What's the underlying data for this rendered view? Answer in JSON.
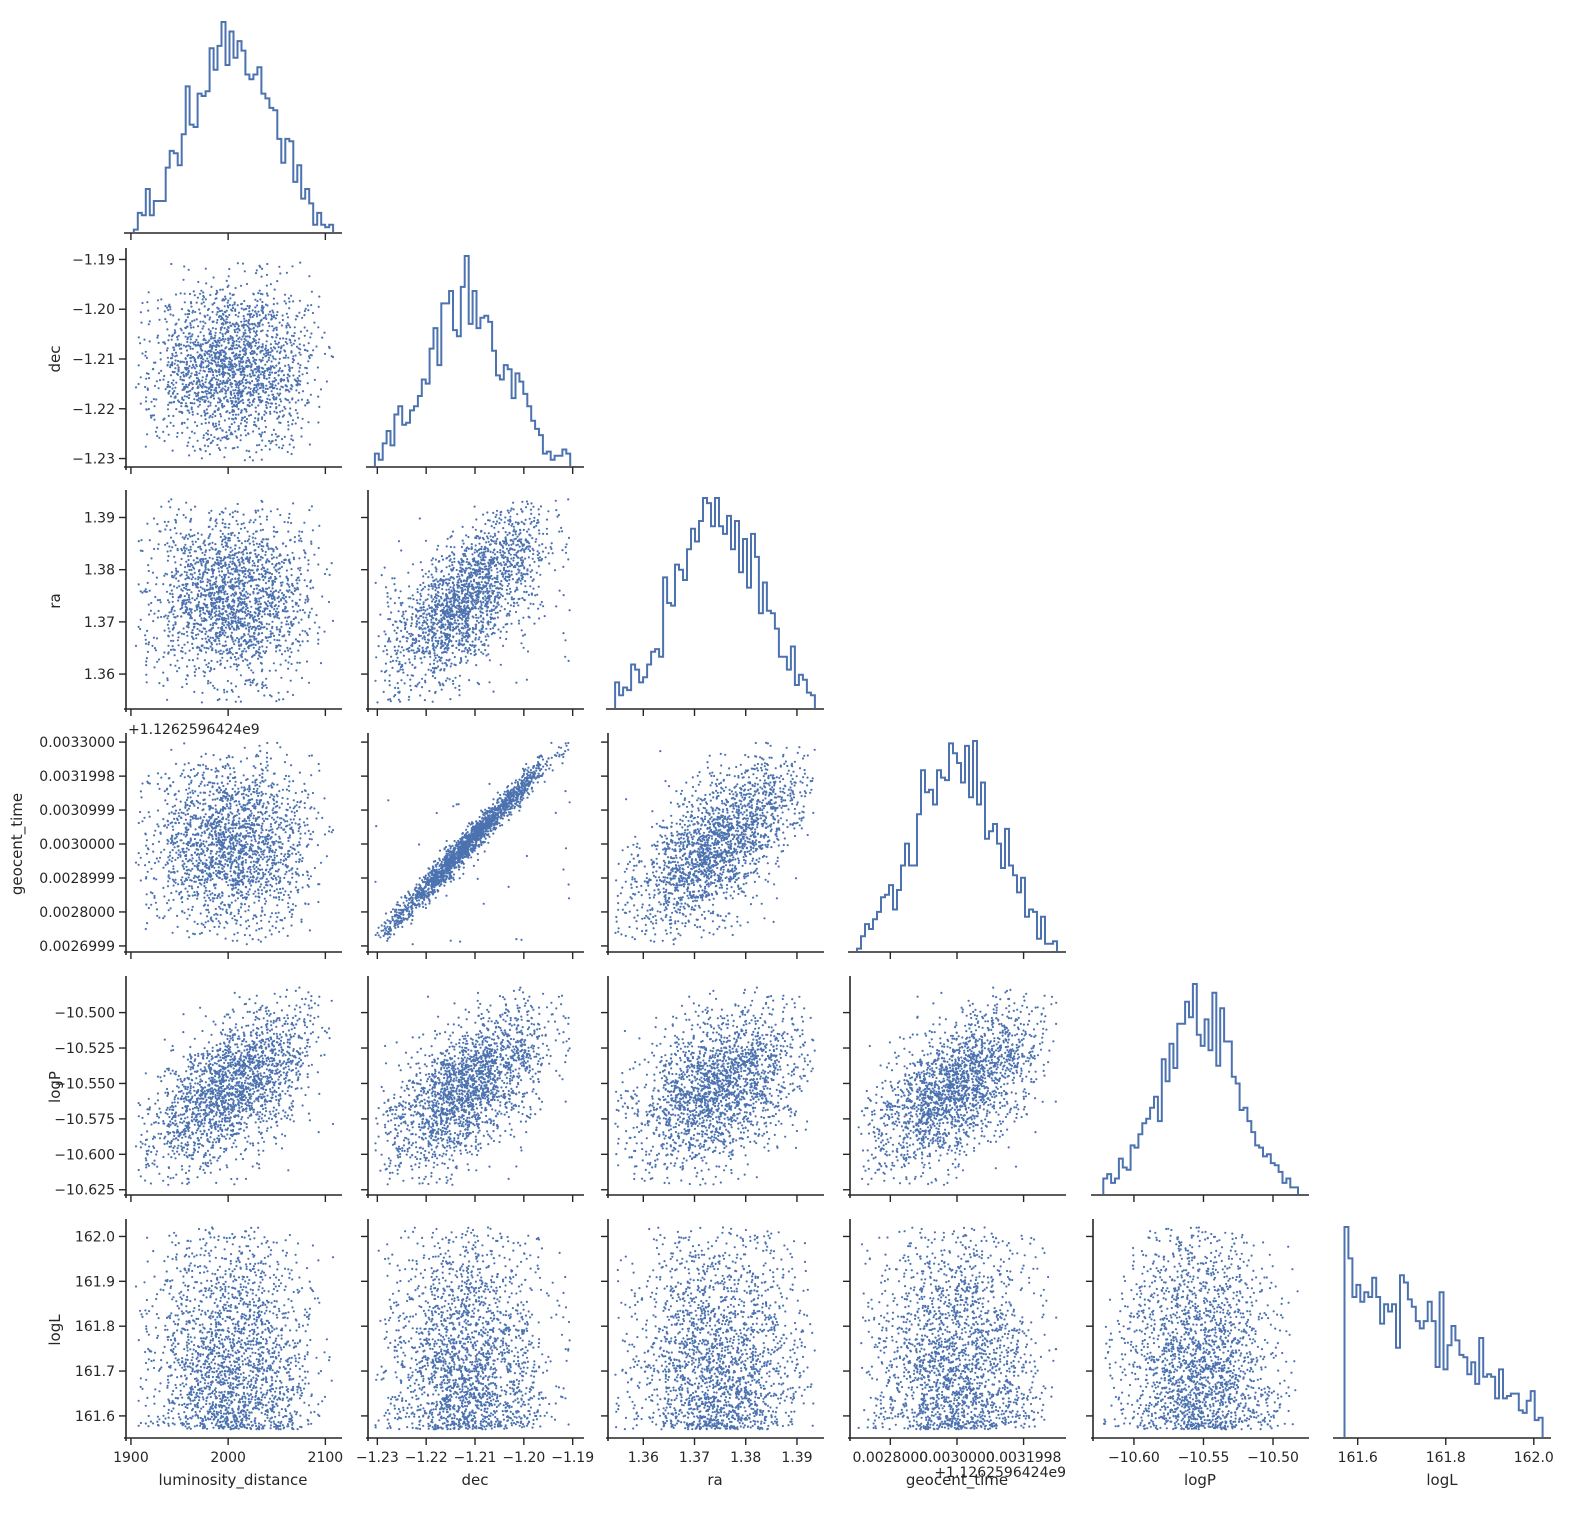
{
  "colors": {
    "series": "#4c72b0",
    "axis": "#262626",
    "background": "#ffffff"
  },
  "chart_data": {
    "type": "scatter",
    "layout": "corner pair plot (lower triangle scatter, diagonal step histograms)",
    "variables": [
      {
        "key": "luminosity_distance",
        "label": "luminosity_distance",
        "range": [
          1897,
          2113
        ],
        "ticks": [
          1900,
          2000,
          2100
        ],
        "tick_labels": [
          "1900",
          "2000",
          "2100"
        ],
        "sample": {
          "dist": "normal",
          "mean": 2003,
          "sd": 42,
          "lo": 1903,
          "hi": 2108
        }
      },
      {
        "key": "dec",
        "label": "dec",
        "range": [
          -1.2315,
          -1.1885
        ],
        "ticks": [
          -1.23,
          -1.22,
          -1.21,
          -1.2,
          -1.19
        ],
        "tick_labels": [
          "−1.23",
          "−1.22",
          "−1.21",
          "−1.20",
          "−1.19"
        ],
        "sample": {
          "dist": "normal",
          "mean": -1.2118,
          "sd": 0.0082,
          "lo": -1.2305,
          "hi": -1.1905
        }
      },
      {
        "key": "ra",
        "label": "ra",
        "range": [
          1.3535,
          1.3945
        ],
        "ticks": [
          1.36,
          1.37,
          1.38,
          1.39
        ],
        "tick_labels": [
          "1.36",
          "1.37",
          "1.38",
          "1.39"
        ],
        "sample": {
          "dist": "normal",
          "mean": 1.3745,
          "sd": 0.0082,
          "lo": 1.3545,
          "hi": 1.3935
        }
      },
      {
        "key": "geocent_time",
        "label": "geocent_time",
        "range": [
          0.002685,
          0.003315
        ],
        "ticks": [
          0.0026999,
          0.0028,
          0.0028999,
          0.003,
          0.0030999,
          0.0031998,
          0.0033
        ],
        "tick_labels": [
          "0.0026999",
          "0.0028000",
          "0.0028999",
          "0.0030000",
          "0.0030999",
          "0.0031998",
          "0.0033000"
        ],
        "x_ticks": [
          0.0028,
          0.003,
          0.0031998
        ],
        "x_tick_labels": [
          "0.0028000",
          "0.0030000",
          "0.0031998"
        ],
        "offset_label": "+1.1262596424e9",
        "sample": {
          "dist": "normal",
          "mean": 0.002995,
          "sd": 0.000125,
          "lo": 0.0027,
          "hi": 0.0033
        }
      },
      {
        "key": "logP",
        "label": "logP",
        "range": [
          -10.628,
          -10.477
        ],
        "ticks": [
          -10.625,
          -10.6,
          -10.575,
          -10.55,
          -10.525,
          -10.5
        ],
        "tick_labels": [
          "−10.625",
          "−10.600",
          "−10.575",
          "−10.550",
          "−10.525",
          "−10.500"
        ],
        "x_ticks": [
          -10.6,
          -10.55,
          -10.5
        ],
        "x_tick_labels": [
          "−10.60",
          "−10.55",
          "−10.50"
        ],
        "sample": {
          "dist": "normal",
          "mean": -10.553,
          "sd": 0.028,
          "lo": -10.622,
          "hi": -10.482
        }
      },
      {
        "key": "logL",
        "label": "logL",
        "range": [
          161.553,
          162.03
        ],
        "ticks": [
          161.6,
          161.7,
          161.8,
          161.9,
          162.0
        ],
        "tick_labels": [
          "161.6",
          "161.7",
          "161.8",
          "161.9",
          "162.0"
        ],
        "x_ticks": [
          161.6,
          161.8,
          162.0
        ],
        "x_tick_labels": [
          "161.6",
          "161.8",
          "162.0"
        ],
        "sample": {
          "dist": "linear_decay",
          "lo": 161.57,
          "hi": 162.02,
          "end_weight": 0.15
        }
      }
    ],
    "correlations": [
      {
        "a": "dec",
        "b": "ra",
        "r": 0.68
      },
      {
        "a": "dec",
        "b": "geocent_time",
        "r": 0.985
      },
      {
        "a": "ra",
        "b": "geocent_time",
        "r": 0.68
      },
      {
        "a": "luminosity_distance",
        "b": "logP",
        "r": 0.6
      },
      {
        "a": "dec",
        "b": "logP",
        "r": 0.6
      },
      {
        "a": "ra",
        "b": "logP",
        "r": 0.42
      },
      {
        "a": "geocent_time",
        "b": "logP",
        "r": 0.6
      }
    ],
    "n_samples": 2000,
    "hist_bins": 50,
    "histogram": "step",
    "point_marker": "dot",
    "legend": "none",
    "grid": false
  }
}
